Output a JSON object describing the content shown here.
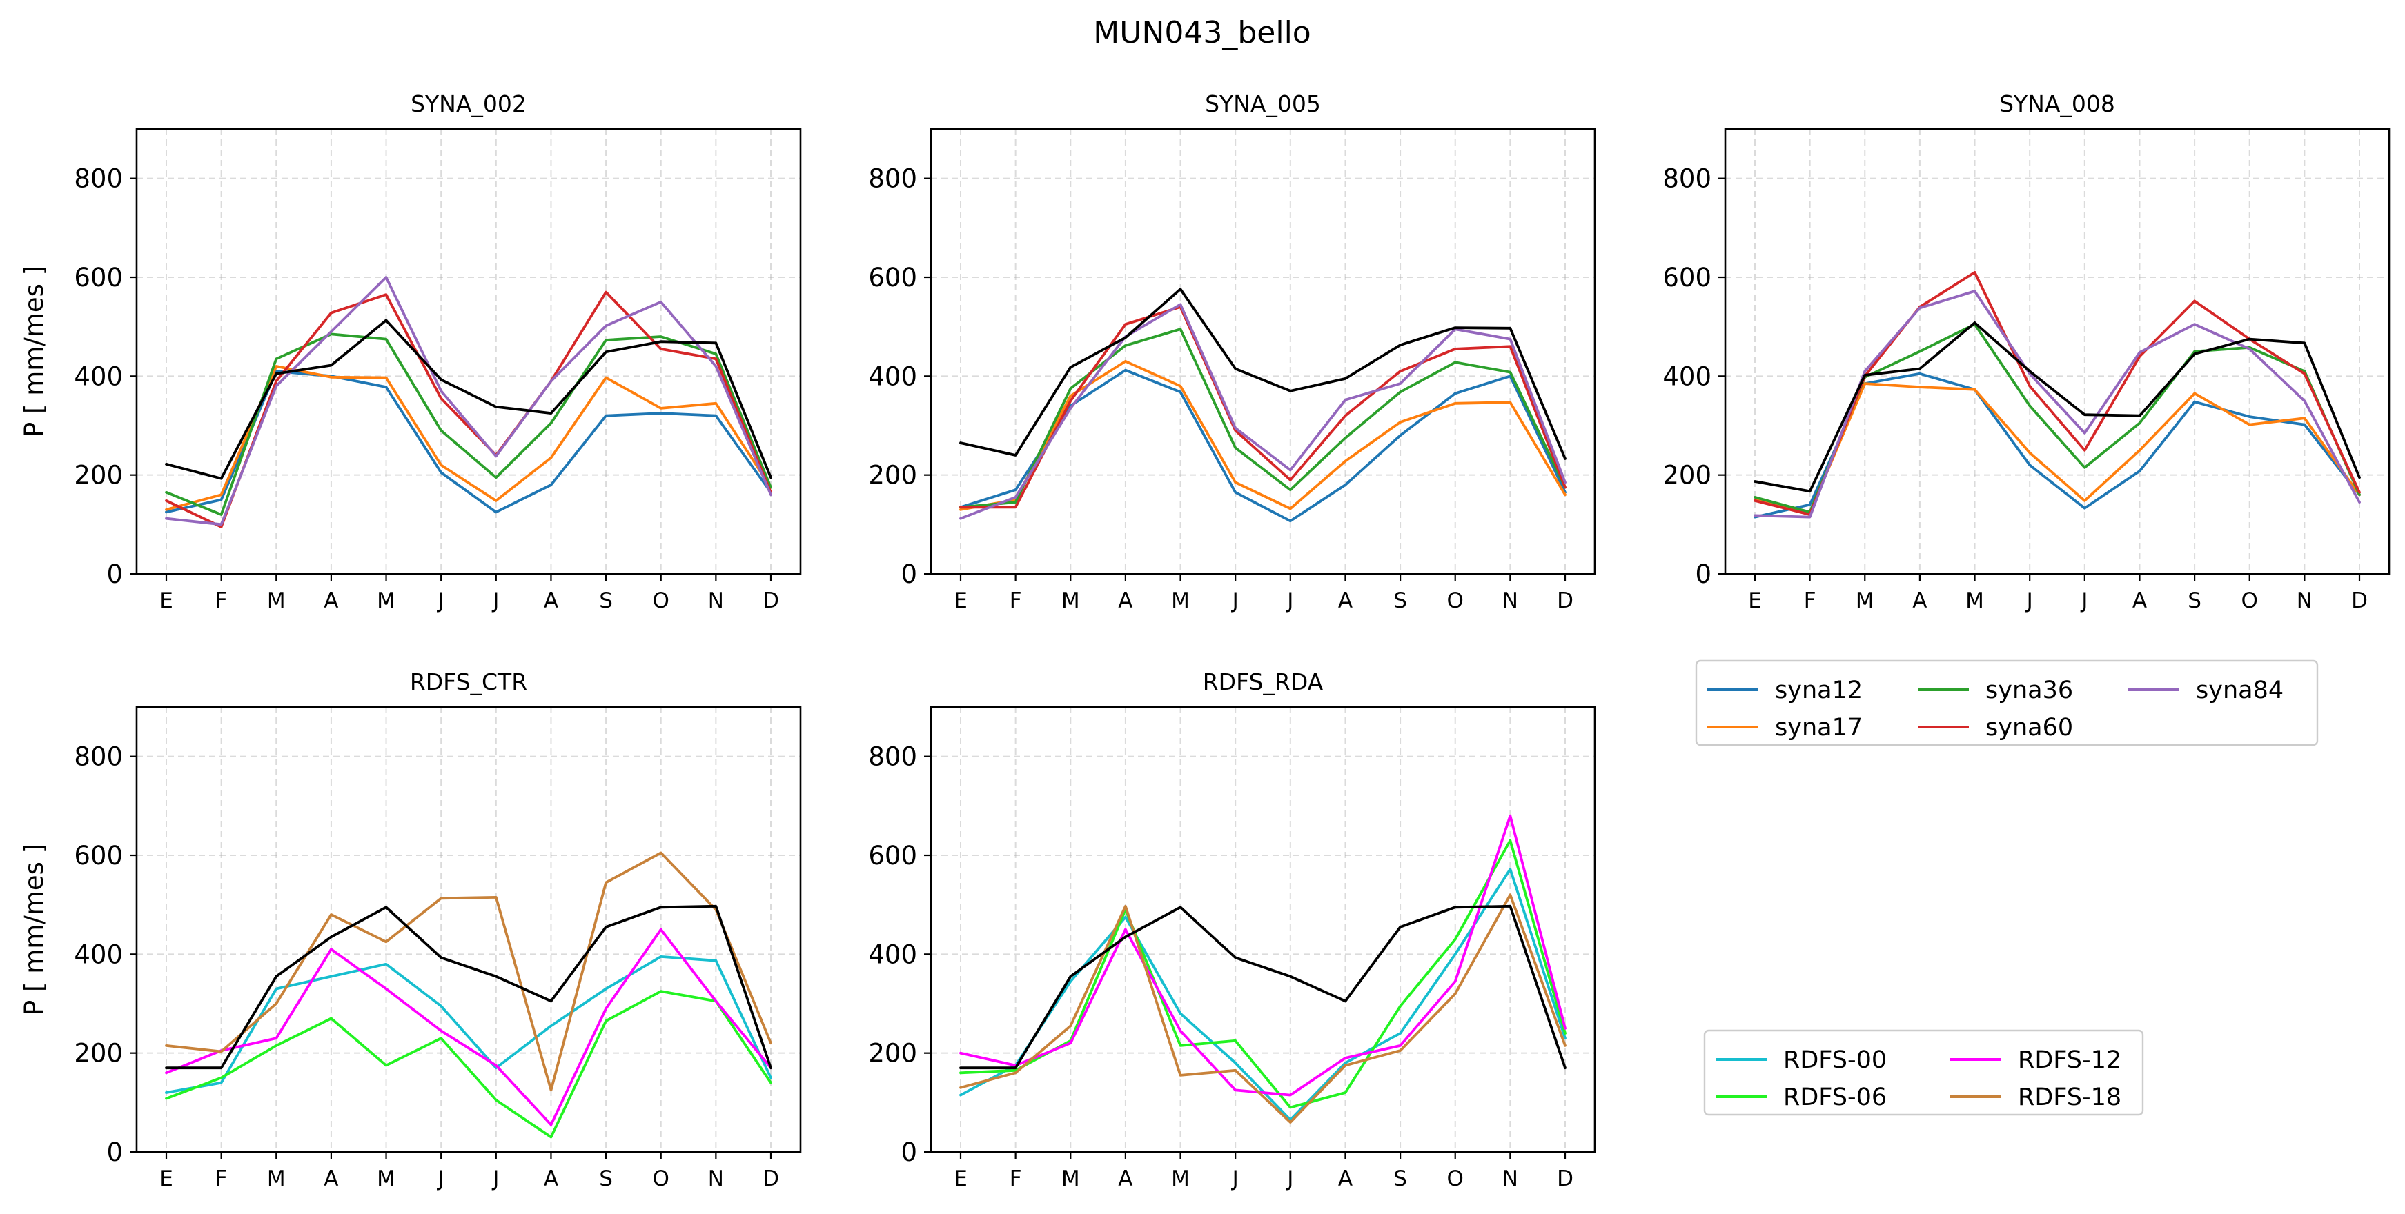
{
  "figure_title": "MUN043_bello",
  "chart_data": [
    {
      "type": "line",
      "title": "SYNA_002",
      "ylabel": "P [ mm/mes ]",
      "xlabel": "",
      "categories": [
        "E",
        "F",
        "M",
        "A",
        "M",
        "J",
        "J",
        "A",
        "S",
        "O",
        "N",
        "D"
      ],
      "ylim": [
        0,
        900
      ],
      "yticks": [
        0,
        200,
        400,
        600,
        800
      ],
      "grid": true,
      "series": [
        {
          "name": "syna12",
          "color": "#1f77b4",
          "values": [
            125,
            150,
            410,
            400,
            378,
            205,
            125,
            180,
            320,
            325,
            320,
            165
          ]
        },
        {
          "name": "syna17",
          "color": "#ff7f0e",
          "values": [
            130,
            160,
            420,
            398,
            397,
            220,
            148,
            235,
            397,
            335,
            345,
            175
          ]
        },
        {
          "name": "syna36",
          "color": "#2ca02c",
          "values": [
            165,
            120,
            435,
            485,
            475,
            290,
            195,
            305,
            473,
            480,
            445,
            175
          ]
        },
        {
          "name": "syna60",
          "color": "#d62728",
          "values": [
            148,
            95,
            390,
            528,
            565,
            355,
            240,
            390,
            570,
            455,
            435,
            165
          ]
        },
        {
          "name": "syna84",
          "color": "#9467bd",
          "values": [
            112,
            100,
            380,
            490,
            600,
            370,
            238,
            390,
            502,
            550,
            420,
            160
          ]
        },
        {
          "color": "#000000",
          "values": [
            222,
            193,
            405,
            422,
            513,
            393,
            338,
            325,
            449,
            470,
            467,
            195
          ]
        }
      ]
    },
    {
      "type": "line",
      "title": "SYNA_005",
      "ylabel": "",
      "xlabel": "",
      "categories": [
        "E",
        "F",
        "M",
        "A",
        "M",
        "J",
        "J",
        "A",
        "S",
        "O",
        "N",
        "D"
      ],
      "ylim": [
        0,
        900
      ],
      "yticks": [
        0,
        200,
        400,
        600,
        800
      ],
      "grid": true,
      "series": [
        {
          "name": "syna12",
          "color": "#1f77b4",
          "values": [
            135,
            170,
            340,
            412,
            368,
            165,
            107,
            180,
            280,
            365,
            400,
            165
          ]
        },
        {
          "name": "syna17",
          "color": "#ff7f0e",
          "values": [
            130,
            150,
            360,
            430,
            380,
            185,
            132,
            228,
            307,
            345,
            347,
            160
          ]
        },
        {
          "name": "syna36",
          "color": "#2ca02c",
          "values": [
            135,
            145,
            375,
            462,
            495,
            255,
            170,
            275,
            368,
            428,
            408,
            175
          ]
        },
        {
          "name": "syna60",
          "color": "#d62728",
          "values": [
            135,
            135,
            350,
            505,
            540,
            290,
            190,
            320,
            410,
            455,
            460,
            175
          ]
        },
        {
          "name": "syna84",
          "color": "#9467bd",
          "values": [
            112,
            155,
            335,
            480,
            545,
            295,
            210,
            352,
            385,
            495,
            475,
            185
          ]
        },
        {
          "color": "#000000",
          "values": [
            265,
            240,
            418,
            478,
            576,
            415,
            370,
            395,
            463,
            498,
            497,
            233
          ]
        }
      ]
    },
    {
      "type": "line",
      "title": "SYNA_008",
      "ylabel": "",
      "xlabel": "",
      "categories": [
        "E",
        "F",
        "M",
        "A",
        "M",
        "J",
        "J",
        "A",
        "S",
        "O",
        "N",
        "D"
      ],
      "ylim": [
        0,
        900
      ],
      "yticks": [
        0,
        200,
        400,
        600,
        800
      ],
      "grid": true,
      "series": [
        {
          "name": "syna12",
          "color": "#1f77b4",
          "values": [
            115,
            140,
            385,
            405,
            373,
            220,
            133,
            208,
            348,
            318,
            302,
            160
          ]
        },
        {
          "name": "syna17",
          "color": "#ff7f0e",
          "values": [
            150,
            125,
            385,
            378,
            373,
            245,
            148,
            250,
            365,
            302,
            315,
            160
          ]
        },
        {
          "name": "syna36",
          "color": "#2ca02c",
          "values": [
            155,
            125,
            398,
            450,
            505,
            340,
            215,
            305,
            450,
            458,
            410,
            160
          ]
        },
        {
          "name": "syna60",
          "color": "#d62728",
          "values": [
            148,
            120,
            400,
            540,
            610,
            380,
            250,
            440,
            552,
            475,
            405,
            165
          ]
        },
        {
          "name": "syna84",
          "color": "#9467bd",
          "values": [
            118,
            115,
            410,
            538,
            572,
            405,
            285,
            448,
            505,
            455,
            350,
            145
          ]
        },
        {
          "color": "#000000",
          "values": [
            187,
            167,
            402,
            415,
            508,
            410,
            322,
            320,
            445,
            475,
            467,
            195
          ]
        }
      ]
    },
    {
      "type": "line",
      "title": "RDFS_CTR",
      "ylabel": "P [ mm/mes ]",
      "xlabel": "",
      "categories": [
        "E",
        "F",
        "M",
        "A",
        "M",
        "J",
        "J",
        "A",
        "S",
        "O",
        "N",
        "D"
      ],
      "ylim": [
        0,
        900
      ],
      "yticks": [
        0,
        200,
        400,
        600,
        800
      ],
      "grid": true,
      "series": [
        {
          "name": "RDFS-00",
          "color": "#17becf",
          "values": [
            120,
            140,
            330,
            355,
            380,
            295,
            170,
            255,
            330,
            395,
            387,
            150
          ]
        },
        {
          "name": "RDFS-06",
          "color": "#22f322",
          "values": [
            108,
            150,
            215,
            270,
            175,
            230,
            105,
            30,
            265,
            325,
            305,
            140
          ]
        },
        {
          "name": "RDFS-12",
          "color": "#ff00ff",
          "values": [
            160,
            205,
            230,
            410,
            330,
            245,
            175,
            55,
            290,
            450,
            305,
            170
          ]
        },
        {
          "name": "RDFS-18",
          "color": "#c8823a",
          "values": [
            215,
            203,
            300,
            480,
            425,
            513,
            515,
            125,
            545,
            605,
            490,
            220
          ]
        },
        {
          "color": "#000000",
          "values": [
            170,
            170,
            355,
            435,
            495,
            393,
            355,
            305,
            455,
            495,
            497,
            170
          ]
        }
      ]
    },
    {
      "type": "line",
      "title": "RDFS_RDA",
      "ylabel": "",
      "xlabel": "",
      "categories": [
        "E",
        "F",
        "M",
        "A",
        "M",
        "J",
        "J",
        "A",
        "S",
        "O",
        "N",
        "D"
      ],
      "ylim": [
        0,
        900
      ],
      "yticks": [
        0,
        200,
        400,
        600,
        800
      ],
      "grid": true,
      "series": [
        {
          "name": "RDFS-00",
          "color": "#17becf",
          "values": [
            115,
            175,
            345,
            475,
            280,
            180,
            65,
            180,
            240,
            400,
            572,
            230
          ]
        },
        {
          "name": "RDFS-06",
          "color": "#22f322",
          "values": [
            160,
            165,
            225,
            490,
            215,
            225,
            90,
            120,
            295,
            430,
            630,
            240
          ]
        },
        {
          "name": "RDFS-12",
          "color": "#ff00ff",
          "values": [
            200,
            175,
            220,
            450,
            245,
            125,
            115,
            190,
            215,
            345,
            680,
            250
          ]
        },
        {
          "name": "RDFS-18",
          "color": "#c8823a",
          "values": [
            130,
            160,
            255,
            497,
            155,
            165,
            60,
            175,
            205,
            320,
            520,
            215
          ]
        },
        {
          "color": "#000000",
          "values": [
            170,
            170,
            355,
            435,
            495,
            393,
            355,
            305,
            455,
            495,
            497,
            170
          ]
        }
      ]
    }
  ],
  "legends": [
    {
      "position": "upper-right, beside SYNA panels",
      "columns": 3,
      "entries": [
        {
          "label": "syna12",
          "color": "#1f77b4"
        },
        {
          "label": "syna17",
          "color": "#ff7f0e"
        },
        {
          "label": "syna36",
          "color": "#2ca02c"
        },
        {
          "label": "syna60",
          "color": "#d62728"
        },
        {
          "label": "syna84",
          "color": "#9467bd"
        }
      ]
    },
    {
      "position": "lower-right, beside RDFS panels",
      "columns": 2,
      "entries": [
        {
          "label": "RDFS-00",
          "color": "#17becf"
        },
        {
          "label": "RDFS-06",
          "color": "#22f322"
        },
        {
          "label": "RDFS-12",
          "color": "#ff00ff"
        },
        {
          "label": "RDFS-18",
          "color": "#c8823a"
        }
      ]
    }
  ]
}
